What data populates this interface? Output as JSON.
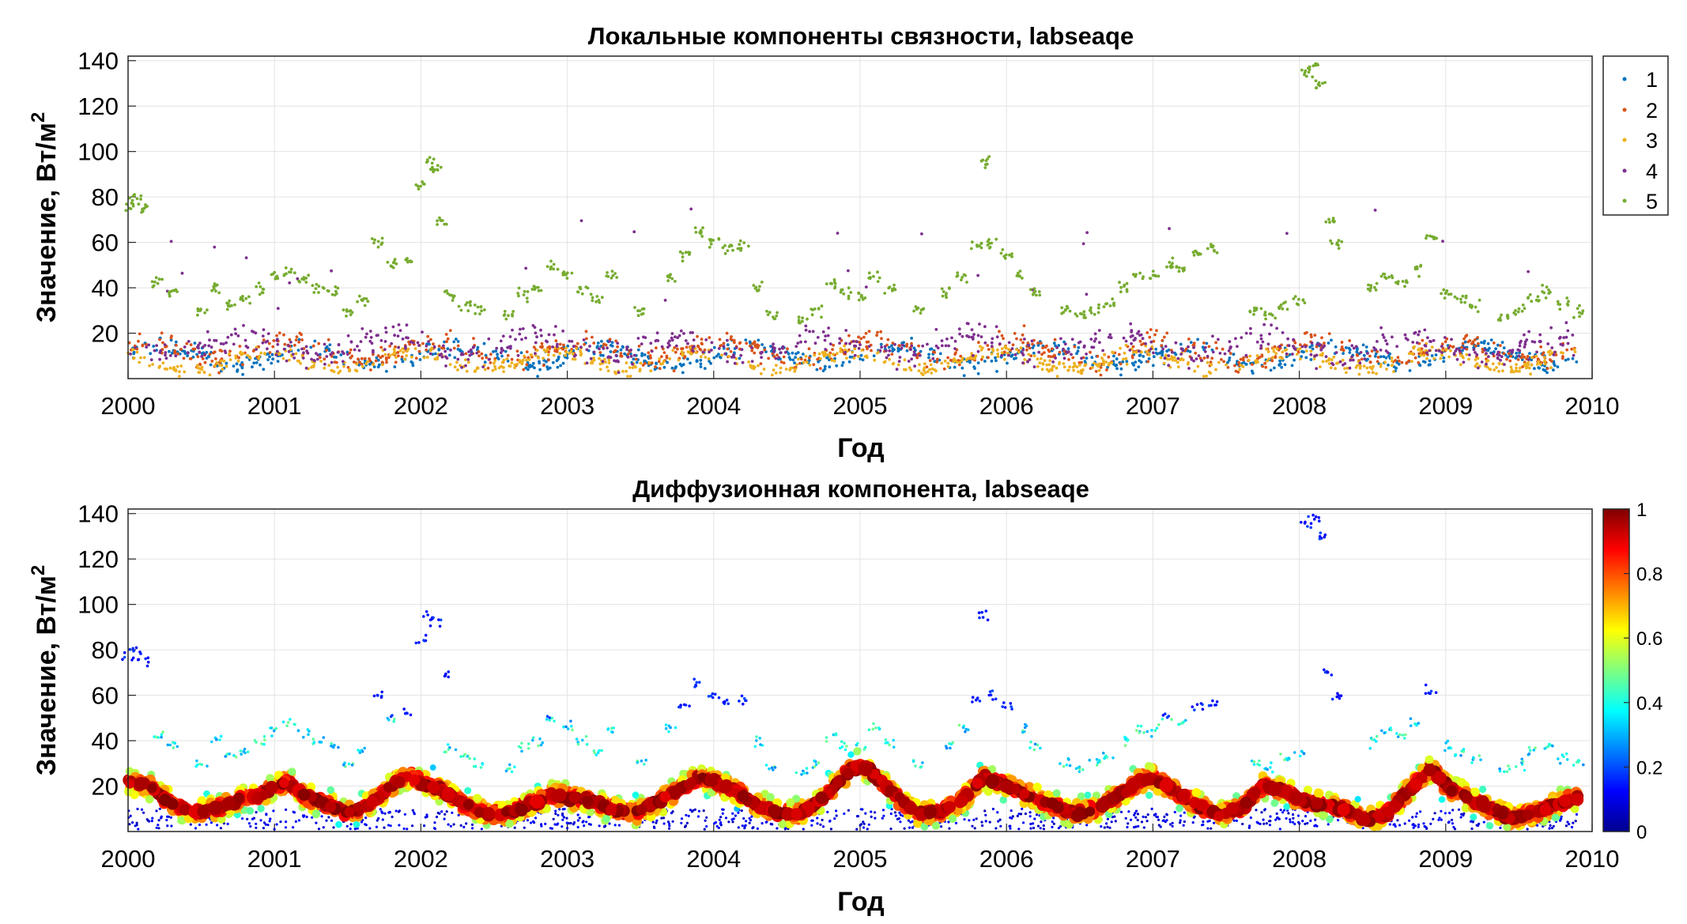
{
  "chart_data": [
    {
      "type": "scatter",
      "title": "Локальные компоненты связности, labseaqe",
      "xlabel": "Год",
      "ylabel": "Значение, Вт/м",
      "ylabel_sup": "2",
      "xlim": [
        2000,
        2010
      ],
      "ylim": [
        0,
        142
      ],
      "x_ticks": [
        2000,
        2001,
        2002,
        2003,
        2004,
        2005,
        2006,
        2007,
        2008,
        2009,
        2010
      ],
      "y_ticks": [
        20,
        40,
        60,
        80,
        100,
        120,
        140
      ],
      "grid": true,
      "legend_position": "right",
      "series": [
        {
          "name": "1",
          "color": "#0072BD",
          "level": 10
        },
        {
          "name": "2",
          "color": "#D95319",
          "level": 12
        },
        {
          "name": "3",
          "color": "#EDB120",
          "level": 8
        },
        {
          "name": "4",
          "color": "#7E2F8E",
          "level": 14
        },
        {
          "name": "5",
          "color": "#77AC30",
          "level": 45
        }
      ],
      "series5_points": [
        [
          2000.0,
          77
        ],
        [
          2000.05,
          80
        ],
        [
          2000.1,
          75
        ],
        [
          2000.2,
          42
        ],
        [
          2000.3,
          38
        ],
        [
          2000.5,
          30
        ],
        [
          2000.6,
          40
        ],
        [
          2000.7,
          33
        ],
        [
          2000.8,
          35
        ],
        [
          2000.9,
          40
        ],
        [
          2001.0,
          45
        ],
        [
          2001.1,
          47
        ],
        [
          2001.2,
          44
        ],
        [
          2001.3,
          40
        ],
        [
          2001.4,
          38
        ],
        [
          2001.5,
          30
        ],
        [
          2001.6,
          35
        ],
        [
          2001.7,
          60
        ],
        [
          2001.8,
          50
        ],
        [
          2001.9,
          52
        ],
        [
          2002.0,
          85
        ],
        [
          2002.05,
          95
        ],
        [
          2002.1,
          92
        ],
        [
          2002.15,
          70
        ],
        [
          2002.2,
          36
        ],
        [
          2002.3,
          33
        ],
        [
          2002.4,
          30
        ],
        [
          2002.6,
          28
        ],
        [
          2002.7,
          37
        ],
        [
          2002.8,
          40
        ],
        [
          2002.9,
          50
        ],
        [
          2003.0,
          46
        ],
        [
          2003.1,
          40
        ],
        [
          2003.2,
          35
        ],
        [
          2003.3,
          45
        ],
        [
          2003.5,
          30
        ],
        [
          2003.7,
          45
        ],
        [
          2003.8,
          55
        ],
        [
          2003.9,
          65
        ],
        [
          2004.0,
          60
        ],
        [
          2004.1,
          57
        ],
        [
          2004.2,
          58
        ],
        [
          2004.3,
          40
        ],
        [
          2004.4,
          28
        ],
        [
          2004.6,
          25
        ],
        [
          2004.7,
          30
        ],
        [
          2004.8,
          42
        ],
        [
          2004.9,
          38
        ],
        [
          2005.0,
          37
        ],
        [
          2005.1,
          45
        ],
        [
          2005.2,
          40
        ],
        [
          2005.4,
          30
        ],
        [
          2005.6,
          38
        ],
        [
          2005.7,
          45
        ],
        [
          2005.8,
          58
        ],
        [
          2005.85,
          95
        ],
        [
          2005.9,
          60
        ],
        [
          2006.0,
          55
        ],
        [
          2006.1,
          45
        ],
        [
          2006.2,
          38
        ],
        [
          2006.4,
          30
        ],
        [
          2006.5,
          28
        ],
        [
          2006.6,
          30
        ],
        [
          2006.7,
          33
        ],
        [
          2006.8,
          40
        ],
        [
          2006.9,
          45
        ],
        [
          2007.0,
          45
        ],
        [
          2007.1,
          50
        ],
        [
          2007.2,
          48
        ],
        [
          2007.3,
          55
        ],
        [
          2007.4,
          57
        ],
        [
          2007.7,
          30
        ],
        [
          2007.8,
          28
        ],
        [
          2007.9,
          32
        ],
        [
          2008.0,
          34
        ],
        [
          2008.05,
          135
        ],
        [
          2008.1,
          138
        ],
        [
          2008.15,
          130
        ],
        [
          2008.2,
          70
        ],
        [
          2008.25,
          60
        ],
        [
          2008.5,
          40
        ],
        [
          2008.6,
          45
        ],
        [
          2008.7,
          42
        ],
        [
          2008.8,
          48
        ],
        [
          2008.9,
          62
        ],
        [
          2009.0,
          38
        ],
        [
          2009.1,
          35
        ],
        [
          2009.2,
          32
        ],
        [
          2009.4,
          27
        ],
        [
          2009.5,
          30
        ],
        [
          2009.6,
          35
        ],
        [
          2009.7,
          38
        ],
        [
          2009.8,
          33
        ],
        [
          2009.9,
          30
        ]
      ]
    },
    {
      "type": "scatter",
      "title": "Диффузионная компонента, labseaqe",
      "xlabel": "Год",
      "ylabel": "Значение, Вт/м",
      "ylabel_sup": "2",
      "xlim": [
        2000,
        2010
      ],
      "ylim": [
        0,
        142
      ],
      "x_ticks": [
        2000,
        2001,
        2002,
        2003,
        2004,
        2005,
        2006,
        2007,
        2008,
        2009,
        2010
      ],
      "y_ticks": [
        20,
        40,
        60,
        80,
        100,
        120,
        140
      ],
      "grid": true,
      "colorbar": {
        "colormap": "jet",
        "range": [
          0,
          1
        ],
        "ticks": [
          "0",
          "0.2",
          "0.4",
          "0.6",
          "0.8",
          "1"
        ]
      },
      "main_band": [
        [
          2000.0,
          22
        ],
        [
          2000.15,
          20
        ],
        [
          2000.3,
          12
        ],
        [
          2000.45,
          8
        ],
        [
          2000.6,
          10
        ],
        [
          2000.75,
          14
        ],
        [
          2000.9,
          16
        ],
        [
          2001.0,
          20
        ],
        [
          2001.1,
          22
        ],
        [
          2001.2,
          16
        ],
        [
          2001.35,
          12
        ],
        [
          2001.5,
          8
        ],
        [
          2001.65,
          12
        ],
        [
          2001.8,
          20
        ],
        [
          2001.9,
          25
        ],
        [
          2002.0,
          22
        ],
        [
          2002.15,
          18
        ],
        [
          2002.3,
          12
        ],
        [
          2002.45,
          8
        ],
        [
          2002.6,
          8
        ],
        [
          2002.75,
          12
        ],
        [
          2002.9,
          16
        ],
        [
          2003.0,
          15
        ],
        [
          2003.15,
          14
        ],
        [
          2003.3,
          10
        ],
        [
          2003.45,
          8
        ],
        [
          2003.6,
          12
        ],
        [
          2003.75,
          18
        ],
        [
          2003.9,
          24
        ],
        [
          2004.0,
          22
        ],
        [
          2004.15,
          18
        ],
        [
          2004.3,
          12
        ],
        [
          2004.45,
          8
        ],
        [
          2004.6,
          8
        ],
        [
          2004.75,
          15
        ],
        [
          2004.9,
          25
        ],
        [
          2005.0,
          30
        ],
        [
          2005.1,
          25
        ],
        [
          2005.25,
          15
        ],
        [
          2005.4,
          8
        ],
        [
          2005.55,
          9
        ],
        [
          2005.7,
          14
        ],
        [
          2005.85,
          24
        ],
        [
          2006.0,
          20
        ],
        [
          2006.15,
          16
        ],
        [
          2006.3,
          12
        ],
        [
          2006.45,
          8
        ],
        [
          2006.6,
          10
        ],
        [
          2006.75,
          15
        ],
        [
          2006.9,
          22
        ],
        [
          2007.0,
          24
        ],
        [
          2007.15,
          18
        ],
        [
          2007.3,
          12
        ],
        [
          2007.45,
          7
        ],
        [
          2007.6,
          10
        ],
        [
          2007.75,
          20
        ],
        [
          2007.9,
          18
        ],
        [
          2008.0,
          14
        ],
        [
          2008.15,
          12
        ],
        [
          2008.3,
          10
        ],
        [
          2008.45,
          5
        ],
        [
          2008.6,
          8
        ],
        [
          2008.75,
          18
        ],
        [
          2008.9,
          28
        ],
        [
          2009.0,
          20
        ],
        [
          2009.15,
          15
        ],
        [
          2009.3,
          10
        ],
        [
          2009.45,
          6
        ],
        [
          2009.6,
          8
        ],
        [
          2009.75,
          12
        ],
        [
          2009.9,
          15
        ]
      ]
    }
  ]
}
